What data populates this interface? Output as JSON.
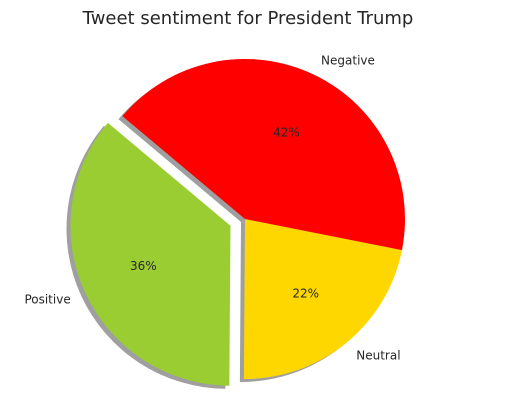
{
  "chart_data": {
    "type": "pie",
    "title": "Tweet sentiment for President Trump",
    "slices": [
      {
        "label": "Positive",
        "value": 36,
        "pct_label": "36%",
        "color": "#9ACD32",
        "exploded": true
      },
      {
        "label": "Neutral",
        "value": 22,
        "pct_label": "22%",
        "color": "#FFD700",
        "exploded": false
      },
      {
        "label": "Negative",
        "value": 42,
        "pct_label": "42%",
        "color": "#FF0000",
        "exploded": false
      }
    ],
    "shadow": true,
    "start_angle_deg": 140
  }
}
